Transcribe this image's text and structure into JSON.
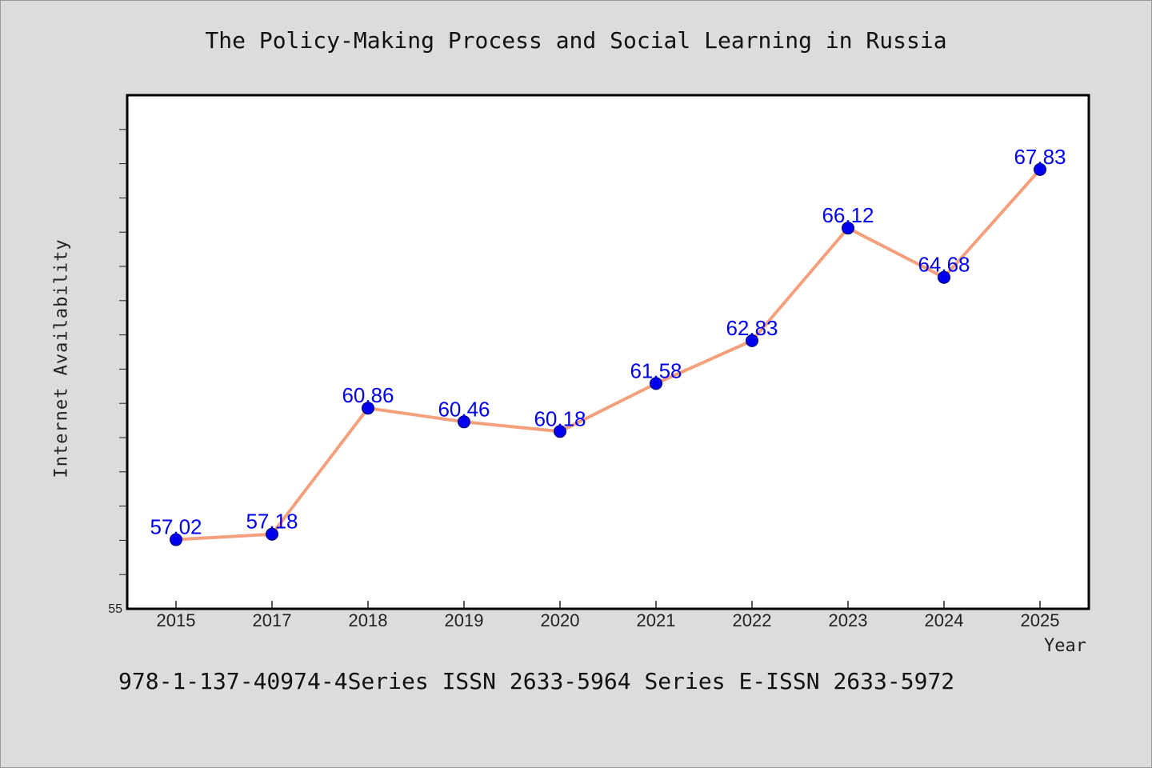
{
  "title": "The Policy-Making Process and Social Learning in Russia",
  "footer": "978-1-137-40974-4Series ISSN 2633-5964 Series E-ISSN 2633-5972",
  "colors": {
    "background": "#dcdcdc",
    "plot_background": "#ffffff",
    "line": "#f4a07c",
    "marker": "#0000ee",
    "data_label": "#0000ee"
  },
  "chart_data": {
    "type": "line",
    "title": "The Policy-Making Process and Social Learning in Russia",
    "xlabel": "Year",
    "ylabel": "Internet Availability",
    "categories": [
      "2015",
      "2017",
      "2018",
      "2019",
      "2020",
      "2021",
      "2022",
      "2023",
      "2024",
      "2025"
    ],
    "series": [
      {
        "values": [
          57.02,
          57.18,
          60.86,
          60.46,
          60.18,
          61.58,
          62.83,
          66.12,
          64.68,
          67.83
        ]
      }
    ],
    "data_labels": [
      "57.02",
      "57.18",
      "60.86",
      "60.46",
      "60.18",
      "61.58",
      "62.83",
      "66.12",
      "64.68",
      "67.83"
    ],
    "ylim": [
      55,
      70
    ],
    "y_min_label": "55",
    "grid": false,
    "legend": "none"
  }
}
